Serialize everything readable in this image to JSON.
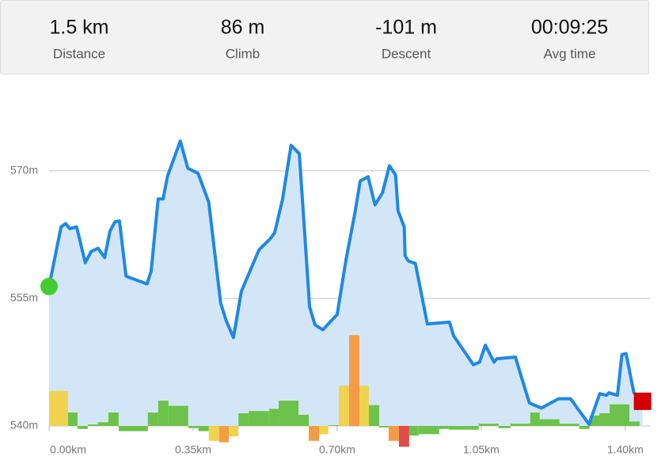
{
  "stats": [
    {
      "value": "1.5 km",
      "label": "Distance"
    },
    {
      "value": "86 m",
      "label": "Climb"
    },
    {
      "value": "-101 m",
      "label": "Descent"
    },
    {
      "value": "00:09:25",
      "label": "Avg time"
    }
  ],
  "chart_data": {
    "type": "area",
    "x": [
      0,
      0.029,
      0.04,
      0.05,
      0.067,
      0.088,
      0.102,
      0.119,
      0.135,
      0.148,
      0.16,
      0.171,
      0.187,
      0.238,
      0.248,
      0.265,
      0.277,
      0.288,
      0.319,
      0.337,
      0.362,
      0.388,
      0.417,
      0.431,
      0.448,
      0.467,
      0.51,
      0.537,
      0.548,
      0.567,
      0.588,
      0.608,
      0.633,
      0.646,
      0.665,
      0.7,
      0.721,
      0.744,
      0.756,
      0.775,
      0.792,
      0.81,
      0.827,
      0.842,
      0.848,
      0.863,
      0.865,
      0.873,
      0.89,
      0.919,
      0.973,
      0.983,
      1.031,
      1.046,
      1.06,
      1.081,
      1.088,
      1.133,
      1.167,
      1.196,
      1.238,
      1.267,
      1.312,
      1.327,
      1.338,
      1.354,
      1.36,
      1.381,
      1.392,
      1.402,
      1.421,
      1.442
    ],
    "values": [
      556.4,
      563.4,
      563.8,
      563.2,
      563.4,
      559.2,
      560.5,
      560.9,
      559.8,
      562.9,
      564.0,
      564.1,
      557.6,
      556.7,
      558.2,
      566.7,
      566.7,
      569.4,
      573.5,
      570.3,
      569.7,
      566.3,
      554.4,
      552.3,
      550.4,
      555.8,
      560.7,
      562.0,
      562.7,
      566.6,
      573.0,
      572.0,
      554.0,
      551.9,
      551.3,
      553.1,
      559.4,
      565.3,
      568.8,
      569.3,
      566.0,
      567.4,
      570.6,
      569.5,
      565.3,
      563.4,
      560.0,
      559.4,
      559.1,
      552.0,
      552.2,
      550.6,
      547.2,
      547.5,
      549.5,
      547.5,
      547.9,
      548.1,
      542.7,
      542.1,
      543.2,
      543.2,
      540.2,
      542.3,
      543.8,
      543.6,
      543.9,
      543.6,
      548.4,
      548.5,
      543.9,
      542.9
    ],
    "color": "#1e88e5",
    "fill": "#d3e6f8",
    "start_color": "#44cc33",
    "end_color": "#d40000",
    "xlim": [
      0,
      1.46
    ],
    "ylim": [
      540,
      575
    ],
    "xticks": [
      {
        "value": 0,
        "label": "0.00km"
      },
      {
        "value": 0.35,
        "label": "0.35km"
      },
      {
        "value": 0.7,
        "label": "0.70km"
      },
      {
        "value": 1.05,
        "label": "1.05km"
      },
      {
        "value": 1.4,
        "label": "1.40km"
      }
    ],
    "yticks": [
      {
        "value": 540,
        "label": "540m"
      },
      {
        "value": 555,
        "label": "555m"
      },
      {
        "value": 570,
        "label": "570m"
      }
    ],
    "grid": true,
    "grades": {
      "bins": [
        0,
        0.046,
        0.069,
        0.094,
        0.119,
        0.144,
        0.169,
        0.24,
        0.265,
        0.29,
        0.338,
        0.363,
        0.388,
        0.413,
        0.437,
        0.46,
        0.485,
        0.535,
        0.558,
        0.606,
        0.631,
        0.656,
        0.679,
        0.704,
        0.729,
        0.754,
        0.777,
        0.802,
        0.825,
        0.85,
        0.875,
        0.898,
        0.948,
        0.971,
        1.044,
        1.092,
        1.121,
        1.169,
        1.192,
        1.24,
        1.288,
        1.313,
        1.337,
        1.362,
        1.41,
        1.435
      ],
      "values": [
        4.7,
        1.8,
        -0.4,
        0.2,
        0.5,
        1.8,
        -0.7,
        1.8,
        3.4,
        2.7,
        -0.3,
        -0.7,
        -2.0,
        -2.2,
        -1.4,
        1.7,
        2.0,
        2.3,
        3.4,
        1.5,
        -2.0,
        -1.1,
        0.1,
        5.4,
        12.2,
        5.4,
        2.8,
        -0.2,
        -2.0,
        -2.8,
        -1.3,
        -1.1,
        -0.4,
        -0.5,
        0.3,
        -0.3,
        0.3,
        1.8,
        0.9,
        0.3,
        -0.4,
        1.4,
        1.7,
        2.9,
        0.6
      ],
      "colors": [
        "#efd34f",
        "#6cc24a",
        "#6cc24a",
        "#6cc24a",
        "#6cc24a",
        "#6cc24a",
        "#6cc24a",
        "#6cc24a",
        "#6cc24a",
        "#6cc24a",
        "#6cc24a",
        "#6cc24a",
        "#efd34f",
        "#f39c45",
        "#efd34f",
        "#6cc24a",
        "#6cc24a",
        "#6cc24a",
        "#6cc24a",
        "#6cc24a",
        "#f39c45",
        "#efd34f",
        "#6cc24a",
        "#efd34f",
        "#f39c45",
        "#efd34f",
        "#6cc24a",
        "#6cc24a",
        "#f39c45",
        "#e04b4b",
        "#6cc24a",
        "#6cc24a",
        "#6cc24a",
        "#6cc24a",
        "#6cc24a",
        "#6cc24a",
        "#6cc24a",
        "#6cc24a",
        "#6cc24a",
        "#6cc24a",
        "#6cc24a",
        "#6cc24a",
        "#6cc24a",
        "#6cc24a",
        "#6cc24a"
      ],
      "y2lim": [
        0,
        40
      ]
    }
  }
}
